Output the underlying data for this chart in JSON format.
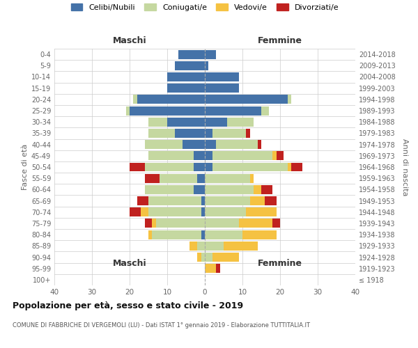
{
  "age_groups": [
    "100+",
    "95-99",
    "90-94",
    "85-89",
    "80-84",
    "75-79",
    "70-74",
    "65-69",
    "60-64",
    "55-59",
    "50-54",
    "45-49",
    "40-44",
    "35-39",
    "30-34",
    "25-29",
    "20-24",
    "15-19",
    "10-14",
    "5-9",
    "0-4"
  ],
  "birth_years": [
    "≤ 1918",
    "1919-1923",
    "1924-1928",
    "1929-1933",
    "1934-1938",
    "1939-1943",
    "1944-1948",
    "1949-1953",
    "1954-1958",
    "1959-1963",
    "1964-1968",
    "1969-1973",
    "1974-1978",
    "1979-1983",
    "1984-1988",
    "1989-1993",
    "1994-1998",
    "1999-2003",
    "2004-2008",
    "2009-2013",
    "2014-2018"
  ],
  "colors": {
    "celibi": "#4472a8",
    "coniugati": "#c5d8a0",
    "vedovi": "#f5c242",
    "divorziati": "#c0211f"
  },
  "males": {
    "celibi": [
      0,
      0,
      0,
      0,
      1,
      0,
      1,
      1,
      3,
      2,
      3,
      3,
      6,
      8,
      10,
      20,
      18,
      10,
      10,
      8,
      7
    ],
    "coniugati": [
      0,
      0,
      1,
      2,
      13,
      13,
      14,
      14,
      13,
      10,
      13,
      12,
      10,
      7,
      5,
      1,
      1,
      0,
      0,
      0,
      0
    ],
    "vedovi": [
      0,
      0,
      1,
      2,
      1,
      1,
      2,
      0,
      0,
      0,
      0,
      0,
      0,
      0,
      0,
      0,
      0,
      0,
      0,
      0,
      0
    ],
    "divorziati": [
      0,
      0,
      0,
      0,
      0,
      2,
      3,
      3,
      0,
      4,
      4,
      0,
      0,
      0,
      0,
      0,
      0,
      0,
      0,
      0,
      0
    ]
  },
  "females": {
    "celibi": [
      0,
      0,
      0,
      0,
      0,
      0,
      0,
      0,
      0,
      0,
      2,
      2,
      3,
      2,
      6,
      15,
      22,
      9,
      9,
      1,
      3
    ],
    "coniugati": [
      0,
      0,
      2,
      5,
      10,
      9,
      11,
      12,
      13,
      12,
      20,
      16,
      11,
      9,
      7,
      2,
      1,
      0,
      0,
      0,
      0
    ],
    "vedovi": [
      0,
      3,
      7,
      9,
      9,
      9,
      8,
      4,
      2,
      1,
      1,
      1,
      0,
      0,
      0,
      0,
      0,
      0,
      0,
      0,
      0
    ],
    "divorziati": [
      0,
      1,
      0,
      0,
      0,
      2,
      0,
      3,
      3,
      0,
      3,
      2,
      1,
      1,
      0,
      0,
      0,
      0,
      0,
      0,
      0
    ]
  },
  "title": "Popolazione per età, sesso e stato civile - 2019",
  "subtitle": "COMUNE DI FABBRICHE DI VERGEMOLI (LU) - Dati ISTAT 1° gennaio 2019 - Elaborazione TUTTITALIA.IT",
  "xlabel_left": "Maschi",
  "xlabel_right": "Femmine",
  "ylabel_left": "Fasce di età",
  "ylabel_right": "Anni di nascita",
  "xlim": 40,
  "legend_labels": [
    "Celibi/Nubili",
    "Coniugati/e",
    "Vedovi/e",
    "Divorziati/e"
  ],
  "background_color": "#ffffff",
  "grid_color": "#cccccc"
}
